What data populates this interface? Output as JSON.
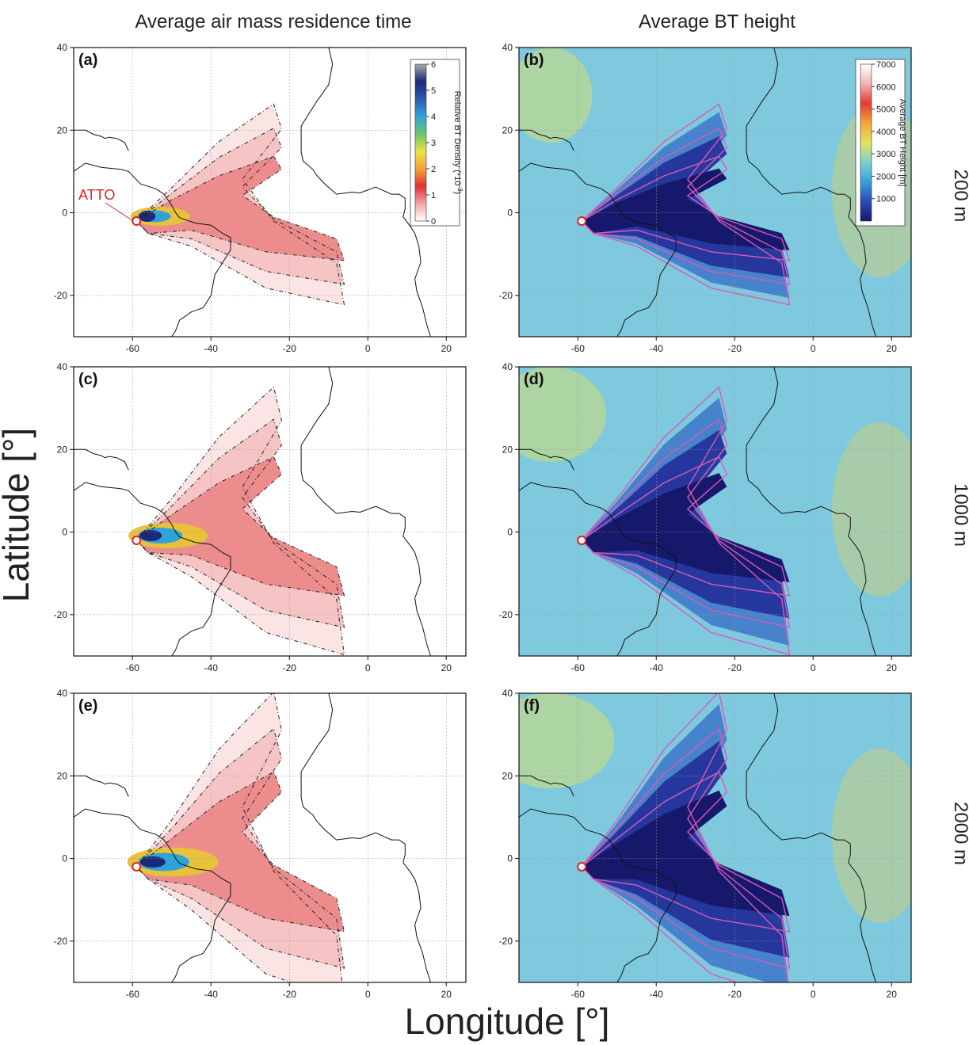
{
  "figure": {
    "col_titles": [
      "Average air mass residence time",
      "Average BT height"
    ],
    "row_titles": [
      "200 m",
      "1000 m",
      "2000 m"
    ],
    "xlabel": "Longitude [°]",
    "ylabel": "Latitude [°]",
    "station_label": "ATTO"
  },
  "chart_data": {
    "type": "heatmap",
    "map_extent": {
      "lon": [
        -75,
        25
      ],
      "lat": [
        -30,
        40
      ]
    },
    "x_ticks": [
      -60,
      -40,
      -20,
      0,
      20
    ],
    "y_ticks": [
      -20,
      0,
      20,
      40
    ],
    "station": {
      "name": "ATTO",
      "lon": -59,
      "lat": -2
    },
    "colorbars": {
      "density": {
        "label": "Relative BT Density (*10^-3)",
        "label_main": "Relative BT Density (*10",
        "label_exp": "-3",
        "label_tail": ")",
        "ticks": [
          0,
          1,
          2,
          3,
          4,
          5,
          6
        ],
        "range": [
          0,
          6
        ],
        "stops": [
          "#ffffff",
          "#f4a6a6",
          "#e03030",
          "#f3a43a",
          "#e8e24a",
          "#6cc46c",
          "#2fa3d8",
          "#2d5ab0",
          "#1a2a7a",
          "#aaaaaa"
        ]
      },
      "height": {
        "label": "Average BT Height [m]",
        "ticks": [
          1000,
          2000,
          3000,
          4000,
          5000,
          6000,
          7000
        ],
        "range": [
          0,
          7000
        ],
        "stops": [
          "#16186b",
          "#2a4bb5",
          "#3aa0dc",
          "#7bd2d0",
          "#e6e25a",
          "#f4a53c",
          "#e33a2f",
          "#f2b4b4",
          "#ffffff"
        ]
      }
    },
    "panels": [
      {
        "label": "(a)",
        "kind": "density",
        "altitude": "200 m",
        "spread": 0.75
      },
      {
        "label": "(b)",
        "kind": "height",
        "altitude": "200 m",
        "spread": 0.75
      },
      {
        "label": "(c)",
        "kind": "density",
        "altitude": "1000 m",
        "spread": 1.0
      },
      {
        "label": "(d)",
        "kind": "height",
        "altitude": "1000 m",
        "spread": 1.0
      },
      {
        "label": "(e)",
        "kind": "density",
        "altitude": "2000 m",
        "spread": 1.15
      },
      {
        "label": "(f)",
        "kind": "height",
        "altitude": "2000 m",
        "spread": 1.15
      }
    ]
  }
}
